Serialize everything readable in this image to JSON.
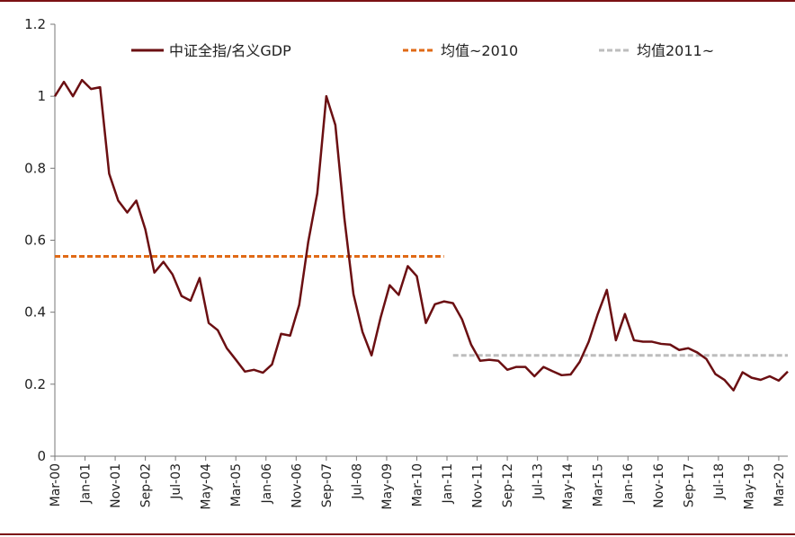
{
  "chart_data": {
    "type": "line",
    "title": "",
    "xlabel": "",
    "ylabel": "",
    "ylim": [
      0,
      1.2
    ],
    "y_ticks": [
      "0",
      "0.2",
      "0.4",
      "0.6",
      "0.8",
      "1",
      "1.2"
    ],
    "x_tick_labels": [
      "Mar-00",
      "Jan-01",
      "Nov-01",
      "Sep-02",
      "Jul-03",
      "May-04",
      "Mar-05",
      "Jan-06",
      "Nov-06",
      "Sep-07",
      "Jul-08",
      "May-09",
      "Mar-10",
      "Jan-11",
      "Nov-11",
      "Sep-12",
      "Jul-13",
      "May-14",
      "Mar-15",
      "Jan-16",
      "Nov-16",
      "Sep-17",
      "Jul-18",
      "May-19",
      "Mar-20"
    ],
    "x_start": "Mar-00",
    "x_end": "Jun-20",
    "point_interval_months": 3,
    "series": [
      {
        "name": "中证全指/名义GDP",
        "color": "#6b0f12",
        "style": "solid",
        "values": [
          1.0,
          1.04,
          1.0,
          1.045,
          1.02,
          1.025,
          0.785,
          0.71,
          0.677,
          0.71,
          0.63,
          0.51,
          0.54,
          0.505,
          0.445,
          0.432,
          0.495,
          0.37,
          0.35,
          0.3,
          0.268,
          0.235,
          0.24,
          0.232,
          0.255,
          0.34,
          0.335,
          0.42,
          0.595,
          0.73,
          1.0,
          0.92,
          0.66,
          0.45,
          0.345,
          0.28,
          0.385,
          0.475,
          0.448,
          0.528,
          0.5,
          0.37,
          0.422,
          0.43,
          0.425,
          0.38,
          0.31,
          0.265,
          0.268,
          0.265,
          0.24,
          0.248,
          0.248,
          0.222,
          0.248,
          0.236,
          0.225,
          0.227,
          0.262,
          0.318,
          0.395,
          0.462,
          0.322,
          0.395,
          0.322,
          0.318,
          0.318,
          0.312,
          0.31,
          0.295,
          0.3,
          0.288,
          0.27,
          0.228,
          0.212,
          0.183,
          0.233,
          0.218,
          0.212,
          0.222,
          0.21,
          0.235
        ]
      },
      {
        "name": "均值~2010",
        "color": "#e06a16",
        "style": "dashed",
        "value": 0.555,
        "x_from": "Mar-00",
        "x_to": "Dec-10"
      },
      {
        "name": "均值2011~",
        "color": "#bdbdbd",
        "style": "dashed",
        "value": 0.28,
        "x_from": "Mar-11",
        "x_to": "Jun-20"
      }
    ],
    "legend_position": "top",
    "grid": false
  }
}
